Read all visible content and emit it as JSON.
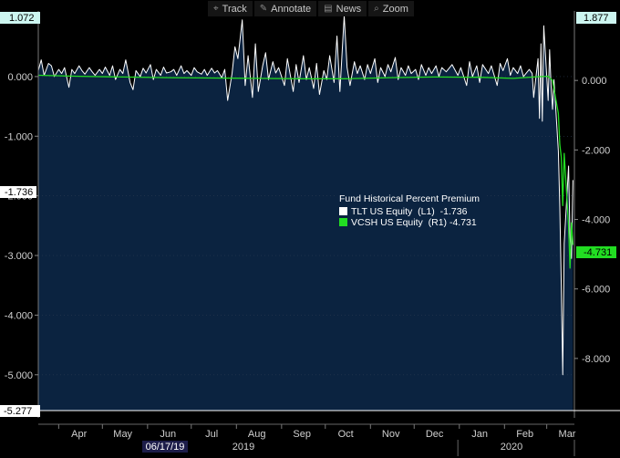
{
  "toolbar": {
    "items": [
      {
        "icon": "crosshair-icon",
        "glyph": "⌖",
        "label": "Track"
      },
      {
        "icon": "pencil-icon",
        "glyph": "✎",
        "label": "Annotate"
      },
      {
        "icon": "news-icon",
        "glyph": "▤",
        "label": "News"
      },
      {
        "icon": "magnifier-icon",
        "glyph": "⌕",
        "label": "Zoom"
      }
    ]
  },
  "colors": {
    "background": "#000000",
    "area_fill": "#0b2340",
    "tlt": "#ffffff",
    "vcsh": "#22dd22",
    "axis_text": "#d0d0d0"
  },
  "chart_data": {
    "type": "line",
    "legend": {
      "title": "Fund Historical Percent Premium",
      "entries": [
        {
          "label": "TLT US Equity  (L1)  -1.736",
          "color": "#ffffff"
        },
        {
          "label": "VCSH US Equity  (R1) -4.731",
          "color": "#22dd22"
        }
      ]
    },
    "left_axis": {
      "ticks": [
        0,
        -1,
        -2,
        -3,
        -4,
        -5
      ],
      "tick_labels": [
        "0.000",
        "-1.000",
        "-2.000",
        "-3.000",
        "-4.000",
        "-5.000"
      ],
      "range": [
        -5.6,
        1.1
      ]
    },
    "right_axis": {
      "ticks": [
        0,
        -2,
        -4,
        -6,
        -8
      ],
      "tick_labels": [
        "0.000",
        "-2.000",
        "-4.000",
        "-6.000",
        "-8.000"
      ],
      "range": [
        -9.5,
        2.0
      ]
    },
    "badges": {
      "left_top": "1.072",
      "right_top": "1.877",
      "tlt_last": "-1.736",
      "vcsh_last": "-4.731",
      "left_min": "-5.277"
    },
    "x_axis": {
      "months": [
        "Apr",
        "May",
        "Jun",
        "Jul",
        "Aug",
        "Sep",
        "Oct",
        "Nov",
        "Dec",
        "Jan",
        "Feb",
        "Mar"
      ],
      "years": [
        "2019",
        "2020"
      ],
      "highlight_date": "06/17/19",
      "range": [
        "2019-03-18",
        "2020-03-20"
      ]
    },
    "series": [
      {
        "name": "TLT US Equity",
        "axis": "left",
        "points": [
          [
            "2019-03-18",
            0.1
          ],
          [
            "2019-03-20",
            0.28
          ],
          [
            "2019-03-22",
            0.02
          ],
          [
            "2019-03-25",
            0.22
          ],
          [
            "2019-03-27",
            0.18
          ],
          [
            "2019-03-29",
            0.0
          ],
          [
            "2019-04-01",
            0.12
          ],
          [
            "2019-04-03",
            0.05
          ],
          [
            "2019-04-05",
            0.15
          ],
          [
            "2019-04-08",
            -0.18
          ],
          [
            "2019-04-10",
            0.12
          ],
          [
            "2019-04-12",
            0.05
          ],
          [
            "2019-04-15",
            0.18
          ],
          [
            "2019-04-17",
            0.1
          ],
          [
            "2019-04-19",
            0.04
          ],
          [
            "2019-04-22",
            0.15
          ],
          [
            "2019-04-24",
            0.08
          ],
          [
            "2019-04-26",
            0.02
          ],
          [
            "2019-04-29",
            0.12
          ],
          [
            "2019-05-01",
            0.05
          ],
          [
            "2019-05-03",
            0.16
          ],
          [
            "2019-05-06",
            0.02
          ],
          [
            "2019-05-08",
            0.18
          ],
          [
            "2019-05-10",
            -0.05
          ],
          [
            "2019-05-13",
            0.12
          ],
          [
            "2019-05-15",
            0.05
          ],
          [
            "2019-05-17",
            0.28
          ],
          [
            "2019-05-20",
            -0.1
          ],
          [
            "2019-05-22",
            -0.22
          ],
          [
            "2019-05-24",
            0.1
          ],
          [
            "2019-05-27",
            0.0
          ],
          [
            "2019-05-29",
            0.14
          ],
          [
            "2019-05-31",
            0.06
          ],
          [
            "2019-06-03",
            0.2
          ],
          [
            "2019-06-05",
            -0.05
          ],
          [
            "2019-06-07",
            0.12
          ],
          [
            "2019-06-10",
            0.02
          ],
          [
            "2019-06-12",
            0.16
          ],
          [
            "2019-06-14",
            0.06
          ],
          [
            "2019-06-17",
            0.08
          ],
          [
            "2019-06-19",
            0.12
          ],
          [
            "2019-06-21",
            0.02
          ],
          [
            "2019-06-24",
            0.18
          ],
          [
            "2019-06-26",
            0.05
          ],
          [
            "2019-06-28",
            0.1
          ],
          [
            "2019-07-01",
            0.02
          ],
          [
            "2019-07-03",
            0.15
          ],
          [
            "2019-07-05",
            0.08
          ],
          [
            "2019-07-08",
            0.04
          ],
          [
            "2019-07-10",
            0.12
          ],
          [
            "2019-07-12",
            0.02
          ],
          [
            "2019-07-15",
            0.14
          ],
          [
            "2019-07-17",
            0.06
          ],
          [
            "2019-07-19",
            0.1
          ],
          [
            "2019-07-22",
            -0.02
          ],
          [
            "2019-07-24",
            0.12
          ],
          [
            "2019-07-26",
            -0.4
          ],
          [
            "2019-07-29",
            0.05
          ],
          [
            "2019-07-31",
            0.5
          ],
          [
            "2019-08-02",
            0.3
          ],
          [
            "2019-08-05",
            0.95
          ],
          [
            "2019-08-07",
            -0.15
          ],
          [
            "2019-08-09",
            0.35
          ],
          [
            "2019-08-12",
            -0.35
          ],
          [
            "2019-08-14",
            0.55
          ],
          [
            "2019-08-16",
            -0.25
          ],
          [
            "2019-08-19",
            0.18
          ],
          [
            "2019-08-21",
            0.4
          ],
          [
            "2019-08-23",
            -0.05
          ],
          [
            "2019-08-26",
            0.25
          ],
          [
            "2019-08-28",
            0.06
          ],
          [
            "2019-08-30",
            0.15
          ],
          [
            "2019-09-03",
            -0.15
          ],
          [
            "2019-09-05",
            0.3
          ],
          [
            "2019-09-09",
            -0.25
          ],
          [
            "2019-09-11",
            0.2
          ],
          [
            "2019-09-13",
            -0.1
          ],
          [
            "2019-09-16",
            0.35
          ],
          [
            "2019-09-18",
            -0.05
          ],
          [
            "2019-09-20",
            0.15
          ],
          [
            "2019-09-23",
            -0.2
          ],
          [
            "2019-09-25",
            0.22
          ],
          [
            "2019-09-27",
            -0.3
          ],
          [
            "2019-09-30",
            0.1
          ],
          [
            "2019-10-02",
            -0.05
          ],
          [
            "2019-10-04",
            0.35
          ],
          [
            "2019-10-07",
            -0.1
          ],
          [
            "2019-10-09",
            0.68
          ],
          [
            "2019-10-11",
            -0.25
          ],
          [
            "2019-10-14",
            1.02
          ],
          [
            "2019-10-16",
            0.15
          ],
          [
            "2019-10-18",
            -0.15
          ],
          [
            "2019-10-21",
            0.25
          ],
          [
            "2019-10-23",
            0.05
          ],
          [
            "2019-10-25",
            0.18
          ],
          [
            "2019-10-28",
            -0.05
          ],
          [
            "2019-10-30",
            0.2
          ],
          [
            "2019-11-01",
            0.05
          ],
          [
            "2019-11-04",
            0.3
          ],
          [
            "2019-11-06",
            -0.1
          ],
          [
            "2019-11-08",
            0.15
          ],
          [
            "2019-11-11",
            0.0
          ],
          [
            "2019-11-13",
            0.2
          ],
          [
            "2019-11-15",
            0.08
          ],
          [
            "2019-11-18",
            0.32
          ],
          [
            "2019-11-20",
            -0.05
          ],
          [
            "2019-11-22",
            0.15
          ],
          [
            "2019-11-25",
            0.02
          ],
          [
            "2019-11-27",
            0.18
          ],
          [
            "2019-11-29",
            0.05
          ],
          [
            "2019-12-02",
            0.12
          ],
          [
            "2019-12-04",
            -0.05
          ],
          [
            "2019-12-06",
            0.2
          ],
          [
            "2019-12-09",
            0.02
          ],
          [
            "2019-12-11",
            0.15
          ],
          [
            "2019-12-13",
            0.05
          ],
          [
            "2019-12-16",
            0.18
          ],
          [
            "2019-12-18",
            0.0
          ],
          [
            "2019-12-20",
            0.15
          ],
          [
            "2019-12-23",
            0.08
          ],
          [
            "2019-12-27",
            0.2
          ],
          [
            "2019-12-31",
            0.02
          ],
          [
            "2020-01-02",
            0.15
          ],
          [
            "2020-01-06",
            -0.15
          ],
          [
            "2020-01-08",
            0.25
          ],
          [
            "2020-01-10",
            0.0
          ],
          [
            "2020-01-13",
            0.18
          ],
          [
            "2020-01-15",
            -0.1
          ],
          [
            "2020-01-17",
            0.2
          ],
          [
            "2020-01-21",
            0.05
          ],
          [
            "2020-01-23",
            0.18
          ],
          [
            "2020-01-27",
            -0.15
          ],
          [
            "2020-01-29",
            0.22
          ],
          [
            "2020-01-31",
            0.1
          ],
          [
            "2020-02-03",
            0.3
          ],
          [
            "2020-02-05",
            0.02
          ],
          [
            "2020-02-07",
            0.15
          ],
          [
            "2020-02-10",
            0.05
          ],
          [
            "2020-02-12",
            0.18
          ],
          [
            "2020-02-14",
            0.0
          ],
          [
            "2020-02-18",
            0.12
          ],
          [
            "2020-02-20",
            0.05
          ],
          [
            "2020-02-21",
            -0.35
          ],
          [
            "2020-02-24",
            0.3
          ],
          [
            "2020-02-25",
            -0.7
          ],
          [
            "2020-02-26",
            0.55
          ],
          [
            "2020-02-27",
            -0.75
          ],
          [
            "2020-02-28",
            0.85
          ],
          [
            "2020-03-02",
            -0.4
          ],
          [
            "2020-03-03",
            0.45
          ],
          [
            "2020-03-04",
            -0.15
          ],
          [
            "2020-03-05",
            -0.55
          ],
          [
            "2020-03-06",
            -0.05
          ],
          [
            "2020-03-09",
            -1.25
          ],
          [
            "2020-03-10",
            -2.2
          ],
          [
            "2020-03-11",
            -3.5
          ],
          [
            "2020-03-12",
            -5.0
          ],
          [
            "2020-03-13",
            -2.8
          ],
          [
            "2020-03-16",
            -1.5
          ],
          [
            "2020-03-17",
            -2.7
          ],
          [
            "2020-03-18",
            -3.05
          ],
          [
            "2020-03-19",
            -1.736
          ]
        ]
      },
      {
        "name": "VCSH US Equity",
        "axis": "right",
        "points": [
          [
            "2019-03-18",
            0.15
          ],
          [
            "2019-04-15",
            0.12
          ],
          [
            "2019-05-15",
            0.1
          ],
          [
            "2019-06-15",
            0.08
          ],
          [
            "2019-07-15",
            0.07
          ],
          [
            "2019-08-15",
            0.06
          ],
          [
            "2019-09-15",
            0.05
          ],
          [
            "2019-10-15",
            0.05
          ],
          [
            "2019-11-15",
            0.08
          ],
          [
            "2019-12-15",
            0.1
          ],
          [
            "2020-01-15",
            0.09
          ],
          [
            "2020-02-07",
            0.06
          ],
          [
            "2020-02-21",
            0.1
          ],
          [
            "2020-03-02",
            0.12
          ],
          [
            "2020-03-05",
            0.0
          ],
          [
            "2020-03-06",
            -0.25
          ],
          [
            "2020-03-09",
            -0.95
          ],
          [
            "2020-03-10",
            -1.85
          ],
          [
            "2020-03-11",
            -2.2
          ],
          [
            "2020-03-12",
            -3.6
          ],
          [
            "2020-03-13",
            -2.1
          ],
          [
            "2020-03-16",
            -4.2
          ],
          [
            "2020-03-17",
            -5.4
          ],
          [
            "2020-03-18",
            -4.1
          ],
          [
            "2020-03-19",
            -4.731
          ]
        ]
      }
    ]
  }
}
